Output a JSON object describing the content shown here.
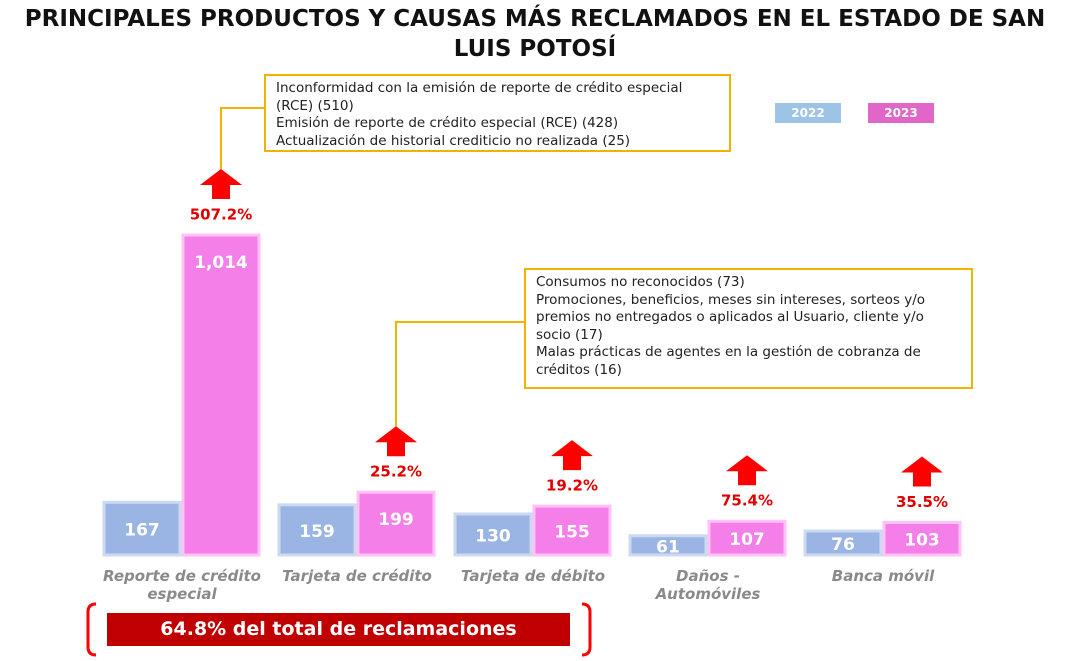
{
  "chart_data": {
    "type": "bar",
    "title": "PRINCIPALES PRODUCTOS Y CAUSAS MÁS RECLAMADOS EN EL ESTADO DE SAN LUIS POTOSÍ",
    "categories": [
      "Reporte de crédito especial",
      "Tarjeta de crédito",
      "Tarjeta de débito",
      "Daños - Automóviles",
      "Banca móvil"
    ],
    "series": [
      {
        "name": "2022",
        "color": "#9ab4e3",
        "values": [
          167,
          159,
          130,
          61,
          76
        ]
      },
      {
        "name": "2023",
        "color": "#f57fe8",
        "values": [
          1014,
          199,
          155,
          107,
          103
        ],
        "value_labels": [
          "1,014",
          "199",
          "155",
          "107",
          "103"
        ]
      }
    ],
    "changes": [
      507.2,
      25.2,
      19.2,
      75.4,
      35.5
    ],
    "change_labels": [
      "507.2%",
      "25.2%",
      "19.2%",
      "75.4%",
      "35.5%"
    ],
    "legend_colors": [
      "#9dc3e6",
      "#e066c8"
    ],
    "callouts": [
      {
        "category": 0,
        "lines": [
          "Inconformidad con la emisión de reporte de crédito especial (RCE) (510)",
          "Emisión de reporte de crédito especial (RCE) (428)",
          "Actualización de historial crediticio no realizada (25)"
        ]
      },
      {
        "category": 1,
        "lines": [
          "Consumos no reconocidos (73)",
          "Promociones, beneficios, meses sin intereses, sorteos y/o premios no entregados o aplicados al Usuario, cliente y/o socio (17)",
          "Malas prácticas de agentes en la gestión de cobranza de créditos (16)"
        ]
      }
    ],
    "footer": "64.8% del total de reclamaciones"
  }
}
